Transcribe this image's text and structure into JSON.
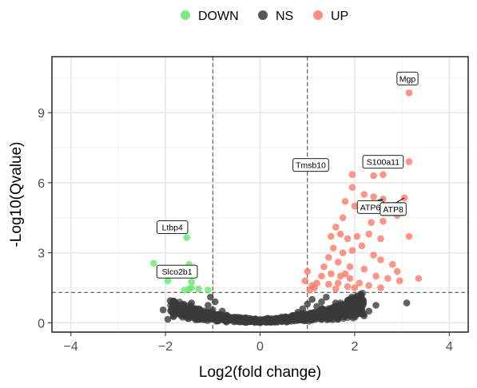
{
  "chart_data": {
    "type": "scatter",
    "xlabel": "Log2(fold change)",
    "ylabel": "-Log10(Qvalue)",
    "xlim": [
      -4.4,
      4.4
    ],
    "ylim": [
      -0.4,
      11.4
    ],
    "x_ticks": [
      -4,
      -2,
      0,
      2,
      4
    ],
    "y_ticks": [
      0,
      3,
      6,
      9
    ],
    "grid": true,
    "legend_position": "top",
    "thresholds": {
      "fold_change": [
        -1,
        1
      ],
      "qvalue": 1.3
    },
    "series": [
      {
        "name": "DOWN",
        "color": "#66e86e",
        "points": [
          [
            -2.25,
            2.55
          ],
          [
            -1.55,
            3.65
          ],
          [
            -1.5,
            2.5
          ],
          [
            -1.95,
            1.8
          ],
          [
            -1.45,
            1.75
          ],
          [
            -1.3,
            1.45
          ],
          [
            -1.6,
            1.4
          ],
          [
            -1.5,
            1.45
          ],
          [
            -1.1,
            1.4
          ],
          [
            -1.45,
            1.5
          ]
        ]
      },
      {
        "name": "NS",
        "color": "#3a3a3a",
        "points": [
          [
            -2.05,
            0.55
          ],
          [
            -1.95,
            0.15
          ],
          [
            -1.7,
            0.6
          ],
          [
            -1.9,
            0.95
          ],
          [
            -1.45,
            0.85
          ],
          [
            -1.3,
            0.6
          ],
          [
            -1.2,
            0.4
          ],
          [
            -1.1,
            0.75
          ],
          [
            -1.0,
            0.55
          ],
          [
            -0.9,
            0.35
          ],
          [
            -0.8,
            0.5
          ],
          [
            -0.7,
            0.3
          ],
          [
            -0.6,
            0.2
          ],
          [
            -0.5,
            0.15
          ],
          [
            -0.4,
            0.1
          ],
          [
            -0.3,
            0.08
          ],
          [
            -0.2,
            0.05
          ],
          [
            0.0,
            0.02
          ],
          [
            0.2,
            0.05
          ],
          [
            0.3,
            0.08
          ],
          [
            0.4,
            0.1
          ],
          [
            0.5,
            0.12
          ],
          [
            0.6,
            0.2
          ],
          [
            0.7,
            0.3
          ],
          [
            0.8,
            0.45
          ],
          [
            0.9,
            0.6
          ],
          [
            1.0,
            0.8
          ],
          [
            1.1,
            1.0
          ],
          [
            1.2,
            0.7
          ],
          [
            1.3,
            0.9
          ],
          [
            1.4,
            1.1
          ],
          [
            1.5,
            0.6
          ],
          [
            1.6,
            0.85
          ],
          [
            1.7,
            0.4
          ],
          [
            1.8,
            0.3
          ],
          [
            1.9,
            0.6
          ],
          [
            2.05,
            1.15
          ],
          [
            2.1,
            0.7
          ],
          [
            2.2,
            0.3
          ],
          [
            2.3,
            0.5
          ],
          [
            1.65,
            0.15
          ],
          [
            3.1,
            0.85
          ],
          [
            2.45,
            0.75
          ],
          [
            -1.6,
            0.3
          ],
          [
            -0.95,
            0.9
          ],
          [
            -1.05,
            1.1
          ],
          [
            1.85,
            0.95
          ]
        ]
      },
      {
        "name": "UP",
        "color": "#fa7a66",
        "points": [
          [
            3.15,
            9.85
          ],
          [
            3.15,
            6.9
          ],
          [
            2.6,
            6.35
          ],
          [
            2.4,
            6.3
          ],
          [
            2.6,
            5.3
          ],
          [
            2.4,
            5.4
          ],
          [
            2.2,
            5.5
          ],
          [
            3.05,
            5.35
          ],
          [
            1.95,
            6.35
          ],
          [
            1.95,
            5.8
          ],
          [
            2.0,
            5.0
          ],
          [
            1.8,
            5.2
          ],
          [
            1.75,
            4.5
          ],
          [
            2.35,
            4.3
          ],
          [
            2.6,
            4.35
          ],
          [
            2.75,
            5.0
          ],
          [
            2.9,
            4.6
          ],
          [
            3.15,
            3.7
          ],
          [
            1.6,
            4.1
          ],
          [
            1.5,
            3.7
          ],
          [
            1.7,
            3.8
          ],
          [
            1.85,
            3.6
          ],
          [
            2.05,
            3.7
          ],
          [
            2.3,
            3.8
          ],
          [
            2.55,
            3.6
          ],
          [
            1.55,
            3.2
          ],
          [
            1.75,
            3.0
          ],
          [
            1.95,
            3.1
          ],
          [
            2.15,
            3.3
          ],
          [
            2.4,
            2.9
          ],
          [
            2.55,
            2.7
          ],
          [
            2.8,
            2.5
          ],
          [
            2.9,
            2.2
          ],
          [
            1.45,
            2.8
          ],
          [
            1.65,
            2.6
          ],
          [
            1.9,
            2.4
          ],
          [
            2.2,
            2.3
          ],
          [
            2.45,
            2.0
          ],
          [
            2.7,
            1.9
          ],
          [
            2.95,
            1.8
          ],
          [
            3.35,
            1.9
          ],
          [
            1.35,
            2.4
          ],
          [
            1.5,
            2.1
          ],
          [
            1.7,
            2.0
          ],
          [
            1.9,
            1.9
          ],
          [
            2.1,
            1.7
          ],
          [
            2.3,
            1.6
          ],
          [
            2.55,
            1.5
          ],
          [
            1.2,
            1.7
          ],
          [
            1.3,
            2.0
          ],
          [
            1.1,
            1.6
          ],
          [
            1.05,
            1.4
          ],
          [
            0.95,
            1.8
          ],
          [
            1.0,
            2.2
          ],
          [
            1.15,
            1.5
          ],
          [
            1.45,
            1.65
          ],
          [
            1.65,
            1.7
          ],
          [
            1.85,
            1.55
          ],
          [
            2.0,
            1.5
          ],
          [
            1.6,
            1.45
          ],
          [
            1.8,
            2.1
          ]
        ]
      }
    ],
    "annotations": [
      {
        "text": "Mgp",
        "x": 3.15,
        "y": 9.85
      },
      {
        "text": "S100a11",
        "x": 2.6,
        "y": 6.35
      },
      {
        "text": "Tmsb10",
        "x": 1.95,
        "y": 6.35
      },
      {
        "text": "ATP6",
        "x": 2.6,
        "y": 5.3
      },
      {
        "text": "ATP8",
        "x": 3.05,
        "y": 5.35
      },
      {
        "text": "Ltbp4",
        "x": -1.55,
        "y": 3.65
      },
      {
        "text": "Slco2b1",
        "x": -1.45,
        "y": 1.75
      }
    ]
  }
}
